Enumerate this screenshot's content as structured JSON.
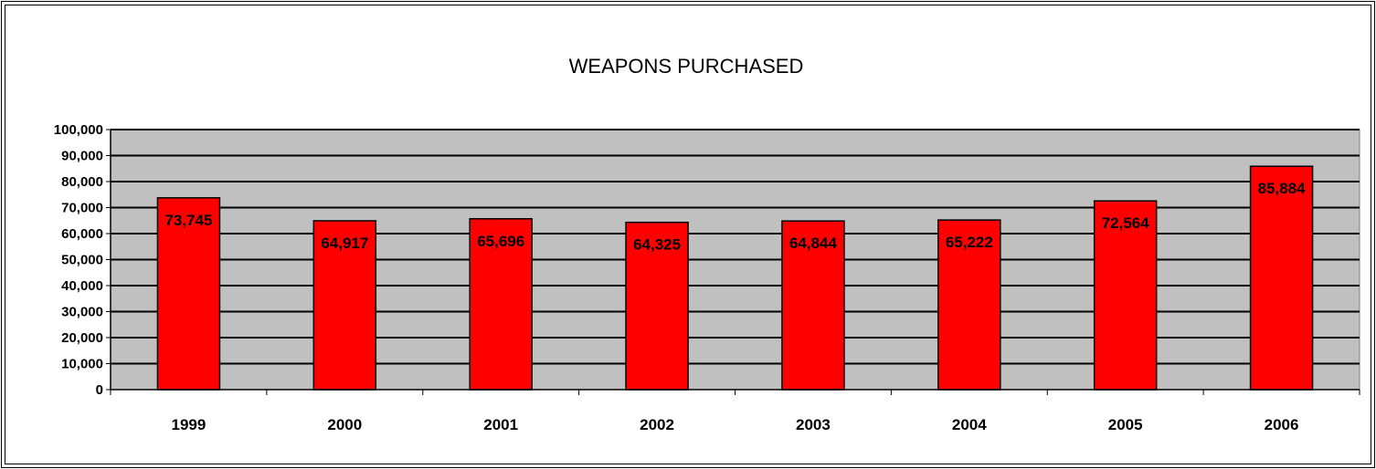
{
  "chart_data": {
    "type": "bar",
    "title": "WEAPONS PURCHASED",
    "xlabel": "",
    "ylabel": "",
    "categories": [
      "1999",
      "2000",
      "2001",
      "2002",
      "2003",
      "2004",
      "2005",
      "2006"
    ],
    "values": [
      73745,
      64917,
      65696,
      64325,
      64844,
      65222,
      72564,
      85884
    ],
    "data_labels": [
      "73,745",
      "64,917",
      "65,696",
      "64,325",
      "64,844",
      "65,222",
      "72,564",
      "85,884"
    ],
    "ylim": [
      0,
      100000
    ],
    "yticks": [
      0,
      10000,
      20000,
      30000,
      40000,
      50000,
      60000,
      70000,
      80000,
      90000,
      100000
    ],
    "ytick_labels": [
      "0",
      "10,000",
      "20,000",
      "30,000",
      "40,000",
      "50,000",
      "60,000",
      "70,000",
      "80,000",
      "90,000",
      "100,000"
    ],
    "grid": true,
    "legend": "none",
    "colors": {
      "bar": "#ff0000",
      "bar_border": "#000000",
      "plot_background": "#c0c0c0",
      "gridline": "#000000"
    }
  }
}
